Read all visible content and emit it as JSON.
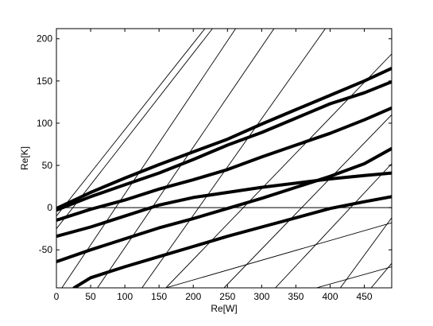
{
  "chart_data": {
    "type": "line",
    "xlabel": "Re[W]",
    "ylabel": "Re[K]",
    "xlim": [
      0,
      490
    ],
    "ylim": [
      -95,
      212
    ],
    "xticks": [
      0,
      50,
      100,
      150,
      200,
      250,
      300,
      350,
      400,
      450
    ],
    "yticks": [
      -50,
      0,
      50,
      100,
      150,
      200
    ],
    "zero_line": true,
    "grid": false,
    "legend": "none",
    "series": [
      {
        "style": "thick",
        "points": [
          [
            0,
            -1
          ],
          [
            50,
            18
          ],
          [
            100,
            35
          ],
          [
            150,
            51
          ],
          [
            200,
            66
          ],
          [
            250,
            81
          ],
          [
            300,
            99
          ],
          [
            350,
            116
          ],
          [
            400,
            133
          ],
          [
            450,
            150
          ],
          [
            490,
            165
          ]
        ]
      },
      {
        "style": "thick",
        "points": [
          [
            0,
            -3
          ],
          [
            50,
            13
          ],
          [
            100,
            27
          ],
          [
            150,
            41
          ],
          [
            200,
            57
          ],
          [
            250,
            74
          ],
          [
            300,
            89
          ],
          [
            350,
            106
          ],
          [
            400,
            123
          ],
          [
            450,
            136
          ],
          [
            490,
            149
          ]
        ]
      },
      {
        "style": "thick",
        "points": [
          [
            0,
            -15
          ],
          [
            50,
            -2
          ],
          [
            100,
            9
          ],
          [
            150,
            22
          ],
          [
            200,
            33
          ],
          [
            250,
            45
          ],
          [
            300,
            60
          ],
          [
            350,
            74
          ],
          [
            400,
            88
          ],
          [
            450,
            104
          ],
          [
            490,
            118
          ]
        ]
      },
      {
        "style": "thick",
        "points": [
          [
            0,
            -34
          ],
          [
            50,
            -23
          ],
          [
            100,
            -10
          ],
          [
            150,
            3
          ],
          [
            200,
            12
          ],
          [
            250,
            18
          ],
          [
            300,
            24
          ],
          [
            350,
            29
          ],
          [
            400,
            34
          ],
          [
            450,
            38
          ],
          [
            490,
            41
          ]
        ]
      },
      {
        "style": "thick",
        "points": [
          [
            0,
            -64
          ],
          [
            50,
            -50
          ],
          [
            100,
            -37
          ],
          [
            150,
            -24
          ],
          [
            200,
            -13
          ],
          [
            250,
            -1
          ],
          [
            300,
            11
          ],
          [
            350,
            24
          ],
          [
            400,
            37
          ],
          [
            450,
            52
          ],
          [
            490,
            70
          ]
        ]
      },
      {
        "style": "thick",
        "points": [
          [
            26,
            -95
          ],
          [
            50,
            -83
          ],
          [
            100,
            -70
          ],
          [
            150,
            -58
          ],
          [
            200,
            -46
          ],
          [
            250,
            -34
          ],
          [
            300,
            -23
          ],
          [
            350,
            -12
          ],
          [
            400,
            -1
          ],
          [
            450,
            7
          ],
          [
            490,
            13
          ]
        ]
      },
      {
        "style": "thin",
        "points": [
          [
            0,
            -10
          ],
          [
            217,
            212
          ]
        ]
      },
      {
        "style": "thin",
        "points": [
          [
            0,
            -25
          ],
          [
            228,
            212
          ]
        ]
      },
      {
        "style": "thin",
        "points": [
          [
            8,
            -95
          ],
          [
            262,
            212
          ]
        ]
      },
      {
        "style": "thin",
        "points": [
          [
            60,
            -95
          ],
          [
            318,
            212
          ]
        ]
      },
      {
        "style": "thin",
        "points": [
          [
            125,
            -95
          ],
          [
            393,
            212
          ]
        ]
      },
      {
        "style": "thin",
        "points": [
          [
            160,
            -95
          ],
          [
            490,
            182
          ]
        ]
      },
      {
        "style": "thin",
        "points": [
          [
            245,
            -95
          ],
          [
            490,
            110
          ]
        ]
      },
      {
        "style": "thin",
        "points": [
          [
            320,
            -95
          ],
          [
            490,
            52
          ]
        ]
      },
      {
        "style": "thin",
        "points": [
          [
            415,
            -95
          ],
          [
            490,
            -12
          ]
        ]
      },
      {
        "style": "thin",
        "points": [
          [
            160,
            -95
          ],
          [
            490,
            -18
          ]
        ]
      },
      {
        "style": "thin",
        "points": [
          [
            380,
            -95
          ],
          [
            490,
            -70
          ]
        ]
      },
      {
        "style": "thin",
        "points": [
          [
            460,
            -95
          ],
          [
            490,
            -66
          ]
        ]
      }
    ]
  }
}
